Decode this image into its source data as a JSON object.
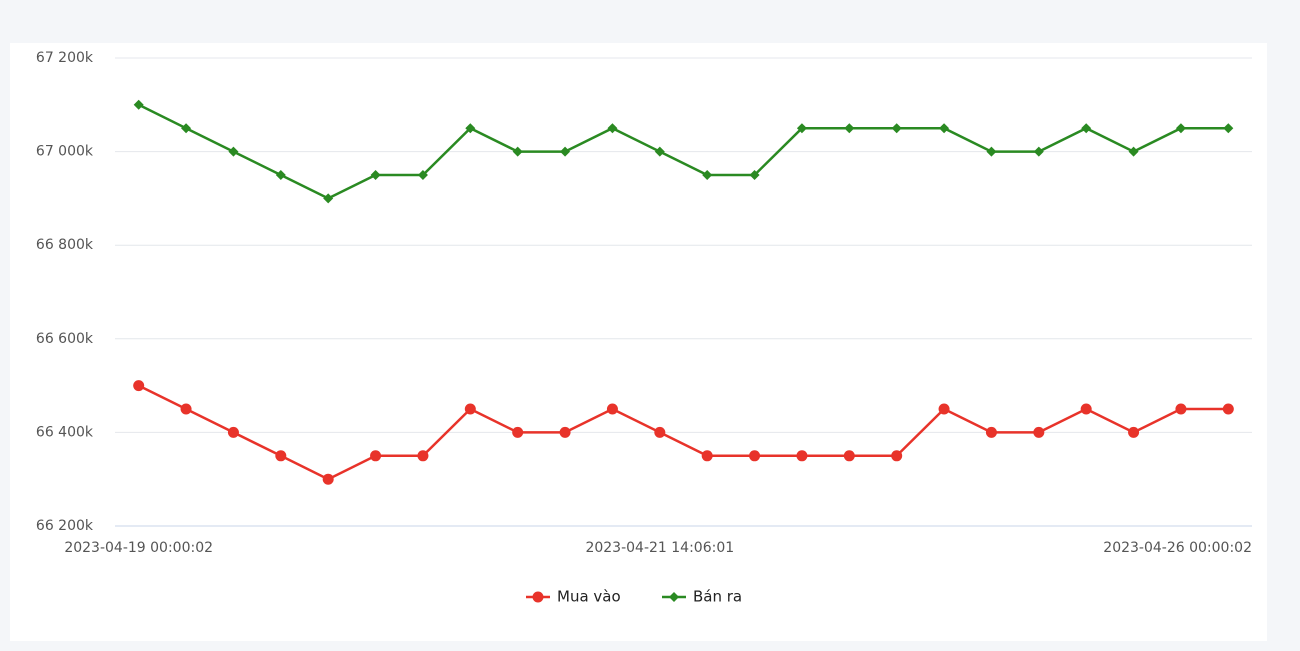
{
  "chart_data": {
    "type": "line",
    "categories": [
      "2023-04-19 00:00:02",
      null,
      null,
      null,
      null,
      null,
      null,
      null,
      null,
      null,
      null,
      "2023-04-21 14:06:01",
      null,
      null,
      null,
      null,
      null,
      null,
      null,
      null,
      null,
      null,
      null,
      "2023-04-26 00:00:02"
    ],
    "series": [
      {
        "name": "Mua vào",
        "color": "#e8332a",
        "marker": "circle",
        "values": [
          66500,
          66450,
          66400,
          66350,
          66300,
          66350,
          66350,
          66450,
          66400,
          66400,
          66450,
          66400,
          66350,
          66350,
          66350,
          66350,
          66350,
          66450,
          66400,
          66400,
          66450,
          66400,
          66450,
          66450
        ]
      },
      {
        "name": "Bán ra",
        "color": "#2a8a22",
        "marker": "diamond",
        "values": [
          67100,
          67050,
          67000,
          66950,
          66900,
          66950,
          66950,
          67050,
          67000,
          67000,
          67050,
          67000,
          66950,
          66950,
          67050,
          67050,
          67050,
          67050,
          67000,
          67000,
          67050,
          67000,
          67050,
          67050
        ]
      }
    ],
    "ylim": [
      66200,
      67200
    ],
    "yticks": [
      {
        "value": 66200,
        "label": "66 200k"
      },
      {
        "value": 66400,
        "label": "66 400k"
      },
      {
        "value": 66600,
        "label": "66 600k"
      },
      {
        "value": 66800,
        "label": "66 800k"
      },
      {
        "value": 67000,
        "label": "67 000k"
      },
      {
        "value": 67200,
        "label": "67 200k"
      }
    ],
    "grid": true,
    "legend": "bottom"
  }
}
